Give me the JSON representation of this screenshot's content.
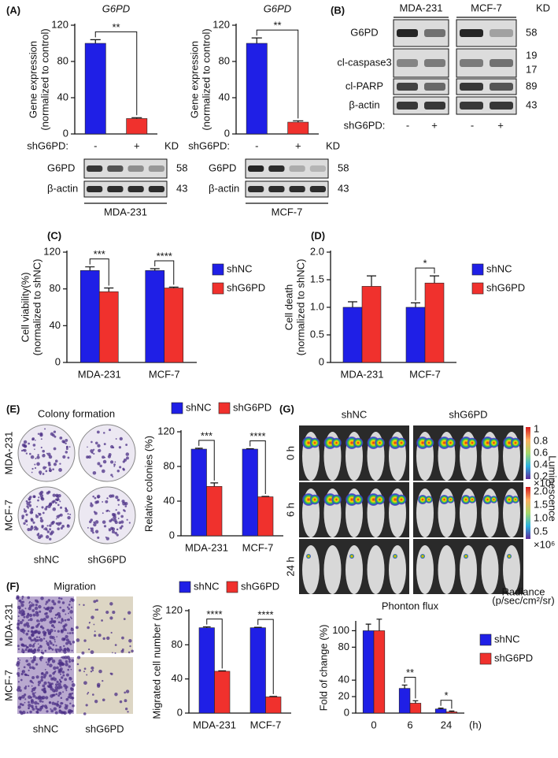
{
  "panel_labels": [
    "(A)",
    "(B)",
    "(C)",
    "(D)",
    "(E)",
    "(F)",
    "(G)"
  ],
  "chart_data": [
    {
      "type": "bar",
      "title": "G6PD",
      "ylabel": [
        "Gene expression",
        "(normalized to control)"
      ],
      "x_label": "shG6PD:",
      "categories": [
        "-",
        "+"
      ],
      "series": [
        {
          "values": [
            100,
            17
          ],
          "errors": [
            4,
            1
          ],
          "colors": [
            "#1f1fe6",
            "#f0312d"
          ]
        }
      ],
      "ylim": [
        0,
        120
      ],
      "yticks": [
        0,
        40,
        80,
        120
      ],
      "significance": "**"
    },
    {
      "type": "bar",
      "title": "G6PD",
      "ylabel": [
        "Gene expression",
        "(normalized to control)"
      ],
      "x_label": "shG6PD:",
      "categories": [
        "-",
        "+"
      ],
      "series": [
        {
          "values": [
            100,
            13
          ],
          "errors": [
            6,
            1.5
          ],
          "colors": [
            "#1f1fe6",
            "#f0312d"
          ]
        }
      ],
      "ylim": [
        0,
        120
      ],
      "yticks": [
        0,
        40,
        80,
        120
      ],
      "significance": "**"
    },
    {
      "type": "bar",
      "ylabel": [
        "Cell viability(%)",
        "(normalized to shNC)"
      ],
      "categories": [
        "MDA-231",
        "MCF-7"
      ],
      "series": [
        {
          "name": "shNC",
          "color": "#1f1fe6",
          "values": [
            100,
            100
          ],
          "errors": [
            4,
            2
          ]
        },
        {
          "name": "shG6PD",
          "color": "#f0312d",
          "values": [
            77,
            81
          ],
          "errors": [
            4,
            1
          ]
        }
      ],
      "ylim": [
        0,
        120
      ],
      "yticks": [
        0,
        40,
        80,
        120
      ],
      "significance": [
        "***",
        "****"
      ],
      "legend": "right"
    },
    {
      "type": "bar",
      "ylabel": [
        "Cell death",
        "(normalized to shNC)"
      ],
      "categories": [
        "MDA-231",
        "MCF-7"
      ],
      "series": [
        {
          "name": "shNC",
          "color": "#1f1fe6",
          "values": [
            1,
            1
          ],
          "errors": [
            0.1,
            0.08
          ]
        },
        {
          "name": "shG6PD",
          "color": "#f0312d",
          "values": [
            1.38,
            1.44
          ],
          "errors": [
            0.19,
            0.13
          ]
        }
      ],
      "ylim": [
        0,
        2
      ],
      "yticks": [
        0,
        0.5,
        {
          "value": 1,
          "label": "1.0"
        },
        1.5,
        {
          "value": 2,
          "label": "2.0"
        }
      ],
      "significance": [
        null,
        "*"
      ],
      "legend": "right"
    },
    {
      "type": "bar",
      "ylabel": [
        "Relative colonies (%)"
      ],
      "categories": [
        "MDA-231",
        "MCF-7"
      ],
      "series": [
        {
          "name": "shNC",
          "color": "#1f1fe6",
          "values": [
            100,
            100
          ],
          "errors": [
            1,
            0.5
          ]
        },
        {
          "name": "shG6PD",
          "color": "#f0312d",
          "values": [
            57,
            45
          ],
          "errors": [
            4,
            0.5
          ]
        }
      ],
      "ylim": [
        0,
        120
      ],
      "yticks": [
        0,
        40,
        80,
        120
      ],
      "significance": [
        "***",
        "****"
      ],
      "legend": "top"
    },
    {
      "type": "bar",
      "ylabel": [
        "Migrated cell number (%)"
      ],
      "categories": [
        "MDA-231",
        "MCF-7"
      ],
      "series": [
        {
          "name": "shNC",
          "color": "#1f1fe6",
          "values": [
            100,
            100
          ],
          "errors": [
            1,
            0.5
          ]
        },
        {
          "name": "shG6PD",
          "color": "#f0312d",
          "values": [
            49,
            19
          ],
          "errors": [
            0.5,
            0.5
          ]
        }
      ],
      "ylim": [
        0,
        120
      ],
      "yticks": [
        0,
        40,
        80,
        120
      ],
      "significance": [
        "****",
        "****"
      ],
      "legend": "top"
    },
    {
      "type": "bar",
      "title": "Phonton flux",
      "ylabel": [
        "Fold of change (%)"
      ],
      "categories": [
        "0",
        "6",
        "24"
      ],
      "x_unit": "(h)",
      "series": [
        {
          "name": "shNC",
          "color": "#1f1fe6",
          "values": [
            100,
            30,
            5
          ],
          "errors": [
            8,
            4,
            1
          ]
        },
        {
          "name": "shG6PD",
          "color": "#f0312d",
          "values": [
            100,
            12,
            1.5
          ],
          "errors": [
            14,
            3,
            1
          ]
        }
      ],
      "ylim": [
        0,
        110
      ],
      "yticks": [
        0,
        20,
        40,
        80,
        100
      ],
      "significance": [
        null,
        "**",
        "*"
      ],
      "legend": "right"
    }
  ],
  "blot_a": [
    {
      "units_header": "KD",
      "rows": [
        {
          "name": "G6PD",
          "kd": "58"
        },
        {
          "name": "β-actin",
          "kd": "43"
        }
      ],
      "cell_line": "MDA-231"
    },
    {
      "units_header": "KD",
      "rows": [
        {
          "name": "G6PD",
          "kd": "58"
        },
        {
          "name": "β-actin",
          "kd": "43"
        }
      ],
      "cell_line": "MCF-7"
    }
  ],
  "blot_b": {
    "cell_lines": [
      "MDA-231",
      "MCF-7"
    ],
    "units_header": "KD",
    "rows": [
      {
        "name": "G6PD",
        "kd": [
          "58"
        ]
      },
      {
        "name": "cl-caspase3",
        "kd": [
          "19",
          "17"
        ]
      },
      {
        "name": "cl-PARP",
        "kd": [
          "89"
        ]
      },
      {
        "name": "β-actin",
        "kd": [
          "43"
        ]
      }
    ],
    "treatment_label": "shG6PD:",
    "treatment": [
      "-",
      "+",
      "-",
      "+"
    ]
  },
  "colony": {
    "title": "Colony formation",
    "rows": [
      "MDA-231",
      "MCF-7"
    ],
    "columns": [
      "shNC",
      "shG6PD"
    ]
  },
  "migration": {
    "title": "Migration",
    "rows": [
      "MDA-231",
      "MCF-7"
    ],
    "columns": [
      "shNC",
      "shG6PD"
    ]
  },
  "imaging": {
    "groups": [
      "shNC",
      "shG6PD"
    ],
    "rows": [
      "0 h",
      "6 h",
      "24 h"
    ],
    "scale_top": [
      "1",
      "0.8",
      "0.6",
      "0.4",
      "0.2"
    ],
    "scale_top_unit": "×10⁷",
    "scale_bottom": [
      "2.0",
      "1.5",
      "1.0",
      "0.5"
    ],
    "scale_bottom_unit": "×10⁶",
    "scale_name": "Luminescence",
    "radiance": [
      "Radiance",
      "(p/sec/cm²/sr)"
    ]
  }
}
